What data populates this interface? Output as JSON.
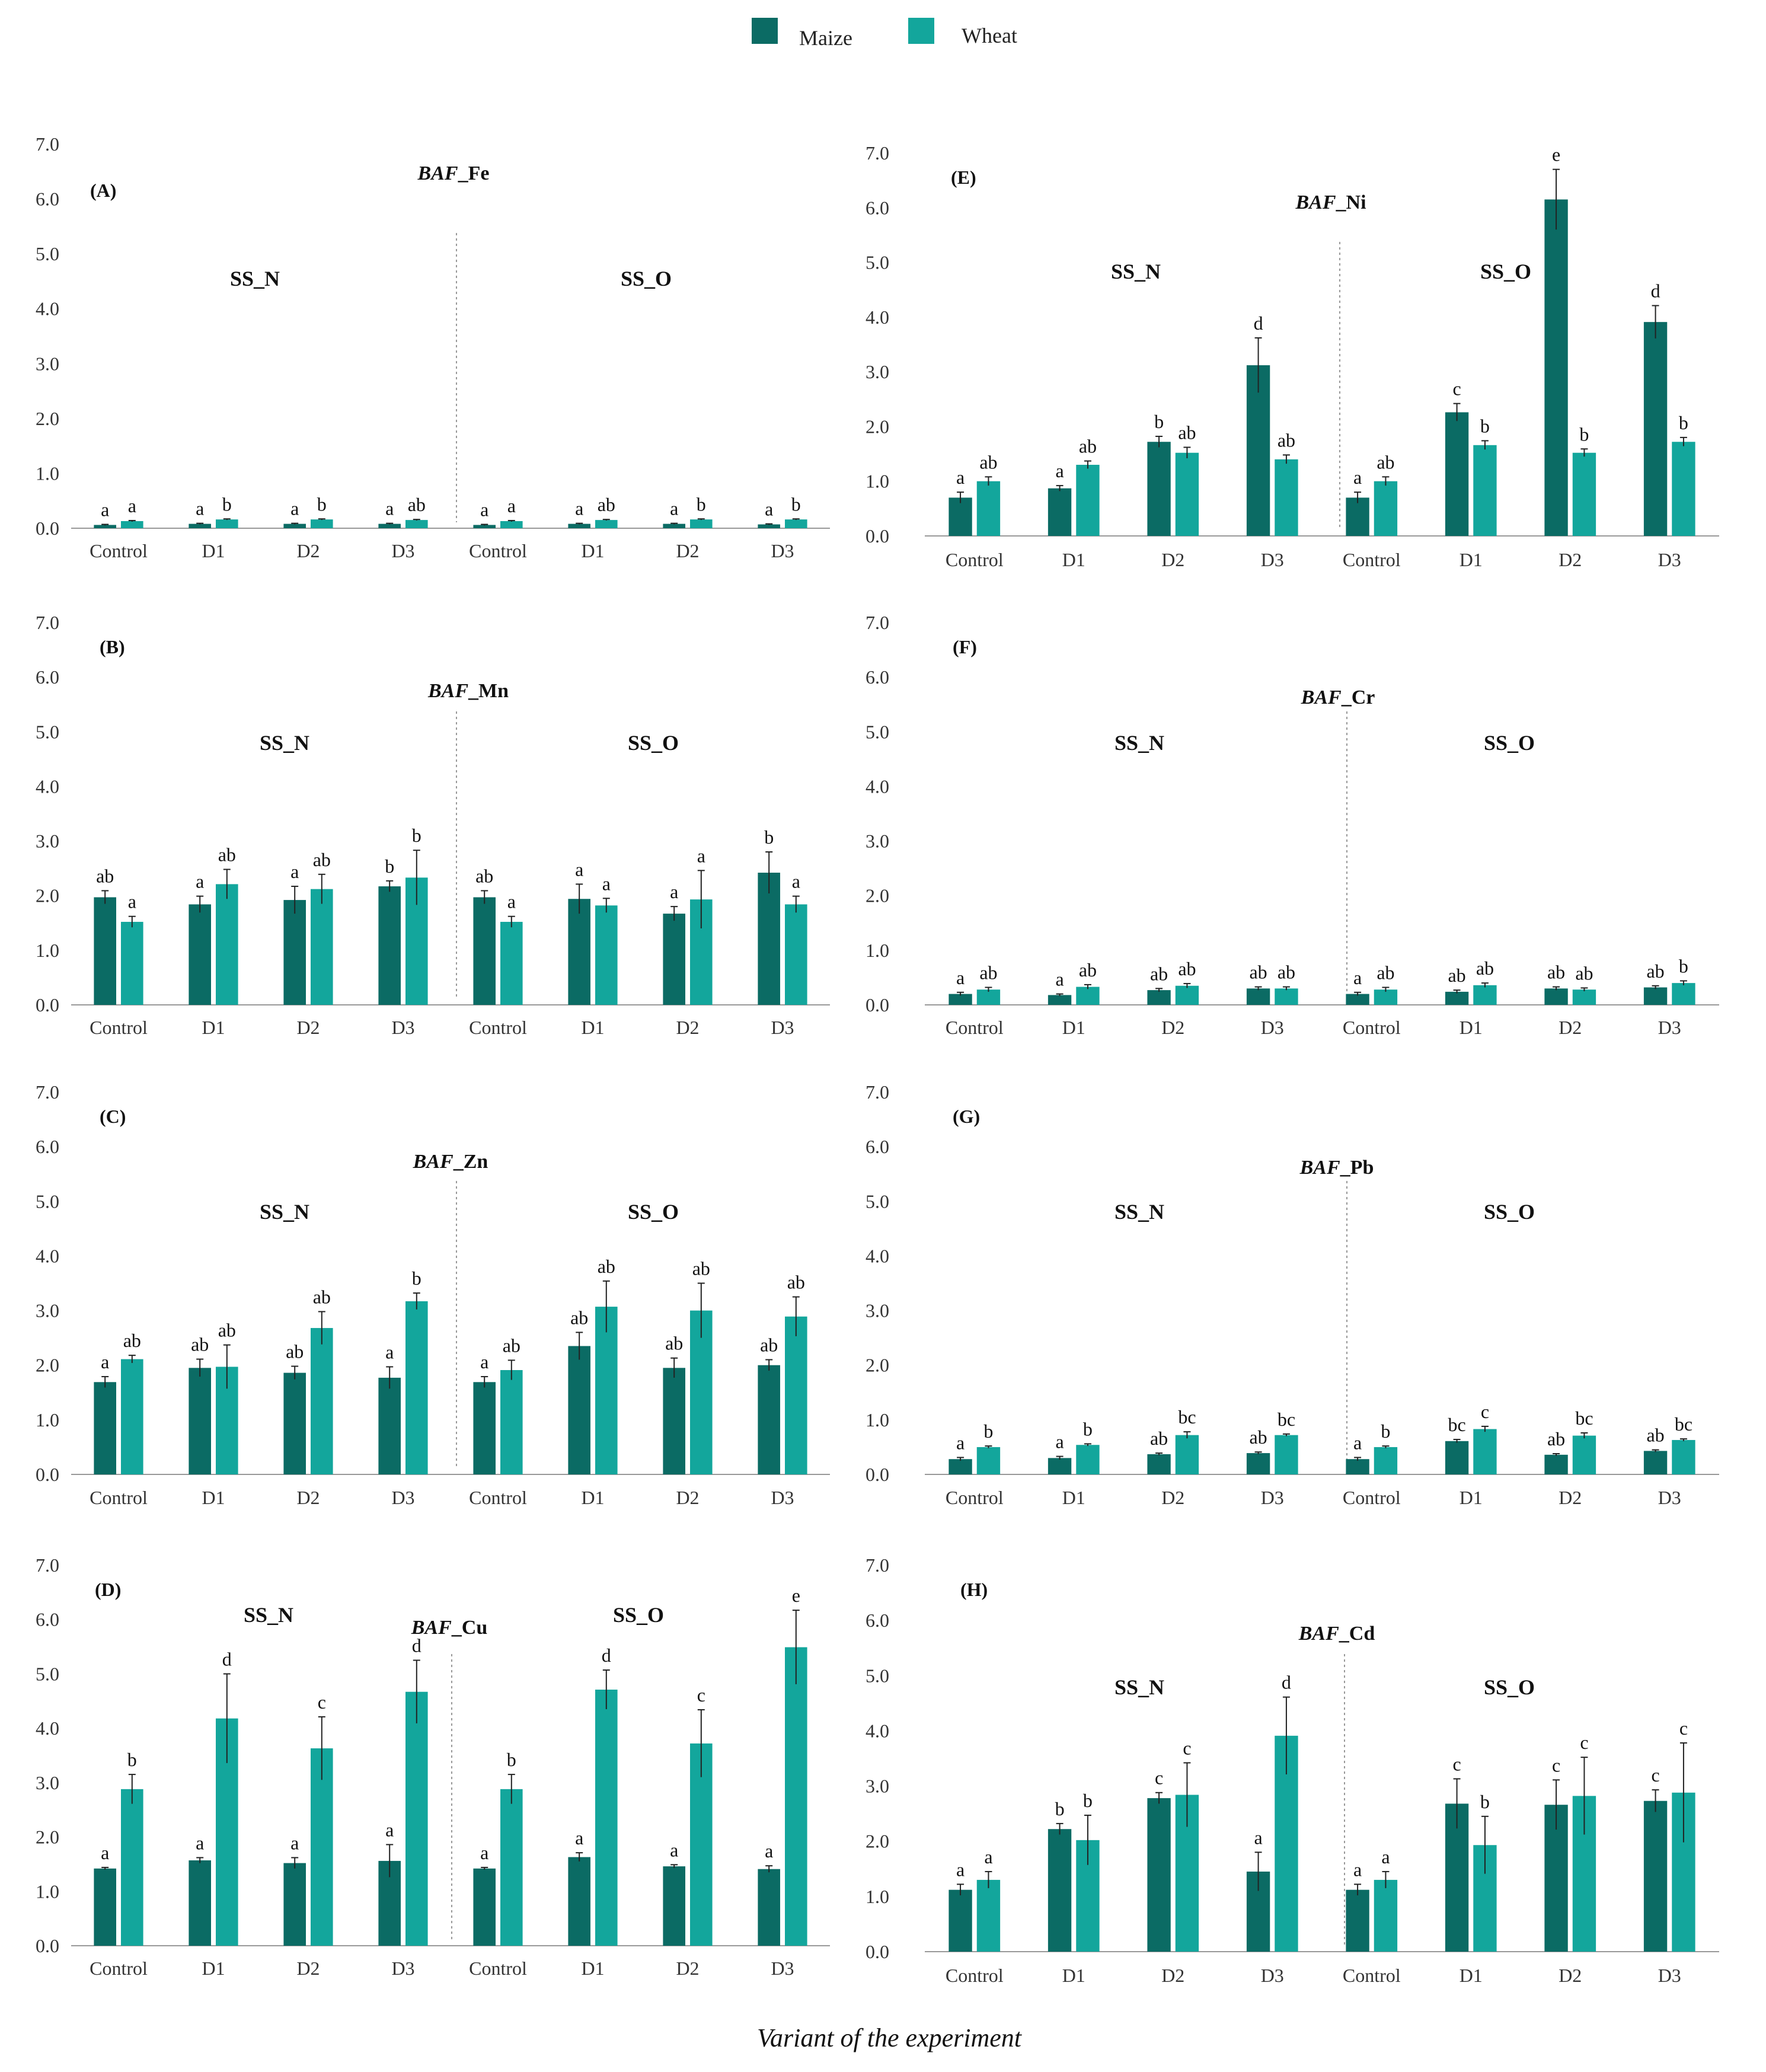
{
  "colors": {
    "maize": "#0b6b64",
    "wheat": "#13a69c",
    "divider": "#999999",
    "axis": "#999999"
  },
  "legend": [
    {
      "name": "Maize",
      "key": "maize"
    },
    {
      "name": "Wheat",
      "key": "wheat"
    }
  ],
  "xlabel": "Variant of the experiment",
  "chart_data": [
    {
      "type": "bar",
      "panel": "(A)",
      "title_prefix": "BAF",
      "title_suffix": "_Fe",
      "ylim": [
        0,
        7
      ],
      "yticks": [
        "0.0",
        "1.0",
        "2.0",
        "3.0",
        "4.0",
        "5.0",
        "6.0",
        "7.0"
      ],
      "groups": [
        "SS_N",
        "SS_O"
      ],
      "categories": [
        "Control",
        "D1",
        "D2",
        "D3",
        "Control",
        "D1",
        "D2",
        "D3"
      ],
      "series": [
        {
          "name": "Maize",
          "values": [
            0.06,
            0.08,
            0.08,
            0.08,
            0.06,
            0.08,
            0.08,
            0.07
          ],
          "errors": [
            0.01,
            0.01,
            0.01,
            0.01,
            0.01,
            0.01,
            0.01,
            0.01
          ],
          "labels": [
            "a",
            "a",
            "a",
            "a",
            "a",
            "a",
            "a",
            "a"
          ]
        },
        {
          "name": "Wheat",
          "values": [
            0.13,
            0.16,
            0.16,
            0.15,
            0.13,
            0.15,
            0.16,
            0.16
          ],
          "errors": [
            0.01,
            0.01,
            0.01,
            0.01,
            0.01,
            0.01,
            0.01,
            0.01
          ],
          "labels": [
            "a",
            "b",
            "b",
            "ab",
            "a",
            "ab",
            "b",
            "b"
          ]
        }
      ]
    },
    {
      "type": "bar",
      "panel": "(B)",
      "title_prefix": "BAF",
      "title_suffix": "_Mn",
      "ylim": [
        0,
        7
      ],
      "yticks": [
        "0.0",
        "1.0",
        "2.0",
        "3.0",
        "4.0",
        "5.0",
        "6.0",
        "7.0"
      ],
      "groups": [
        "SS_N",
        "SS_O"
      ],
      "categories": [
        "Control",
        "D1",
        "D2",
        "D3",
        "Control",
        "D1",
        "D2",
        "D3"
      ],
      "series": [
        {
          "name": "Maize",
          "values": [
            1.97,
            1.84,
            1.92,
            2.17,
            1.97,
            1.94,
            1.67,
            2.42
          ],
          "errors": [
            0.12,
            0.15,
            0.25,
            0.1,
            0.12,
            0.27,
            0.13,
            0.38
          ],
          "labels": [
            "ab",
            "a",
            "a",
            "b",
            "ab",
            "a",
            "a",
            "b"
          ]
        },
        {
          "name": "Wheat",
          "values": [
            1.52,
            2.21,
            2.12,
            2.33,
            1.52,
            1.82,
            1.93,
            1.84
          ],
          "errors": [
            0.1,
            0.27,
            0.27,
            0.5,
            0.1,
            0.13,
            0.53,
            0.15
          ],
          "labels": [
            "a",
            "ab",
            "ab",
            "b",
            "a",
            "a",
            "a",
            "a"
          ]
        }
      ]
    },
    {
      "type": "bar",
      "panel": "(C)",
      "title_prefix": "BAF",
      "title_suffix": "_Zn",
      "ylim": [
        0,
        7
      ],
      "yticks": [
        "0.0",
        "1.0",
        "2.0",
        "3.0",
        "4.0",
        "5.0",
        "6.0",
        "7.0"
      ],
      "groups": [
        "SS_N",
        "SS_O"
      ],
      "categories": [
        "Control",
        "D1",
        "D2",
        "D3",
        "Control",
        "D1",
        "D2",
        "D3"
      ],
      "series": [
        {
          "name": "Maize",
          "values": [
            1.69,
            1.95,
            1.86,
            1.77,
            1.69,
            2.35,
            1.95,
            2.0
          ],
          "errors": [
            0.1,
            0.16,
            0.12,
            0.2,
            0.1,
            0.25,
            0.18,
            0.1
          ],
          "labels": [
            "a",
            "ab",
            "ab",
            "a",
            "a",
            "ab",
            "ab",
            "ab"
          ]
        },
        {
          "name": "Wheat",
          "values": [
            2.11,
            1.97,
            2.68,
            3.17,
            1.91,
            3.07,
            3.0,
            2.89
          ],
          "errors": [
            0.07,
            0.4,
            0.3,
            0.15,
            0.18,
            0.47,
            0.5,
            0.36
          ],
          "labels": [
            "ab",
            "ab",
            "ab",
            "b",
            "ab",
            "ab",
            "ab",
            "ab"
          ]
        }
      ]
    },
    {
      "type": "bar",
      "panel": "(D)",
      "title_prefix": "BAF",
      "title_suffix": "_Cu",
      "ylim": [
        0,
        7
      ],
      "yticks": [
        "0.0",
        "1.0",
        "2.0",
        "3.0",
        "4.0",
        "5.0",
        "6.0",
        "7.0"
      ],
      "groups": [
        "SS_N",
        "SS_O"
      ],
      "categories": [
        "Control",
        "D1",
        "D2",
        "D3",
        "Control",
        "D1",
        "D2",
        "D3"
      ],
      "series": [
        {
          "name": "Maize",
          "values": [
            1.42,
            1.57,
            1.52,
            1.56,
            1.42,
            1.63,
            1.46,
            1.41
          ],
          "errors": [
            0.02,
            0.05,
            0.1,
            0.3,
            0.02,
            0.08,
            0.03,
            0.06
          ],
          "labels": [
            "a",
            "a",
            "a",
            "a",
            "a",
            "a",
            "a",
            "a"
          ]
        },
        {
          "name": "Wheat",
          "values": [
            2.88,
            4.18,
            3.63,
            4.67,
            2.88,
            4.71,
            3.72,
            5.49
          ],
          "errors": [
            0.27,
            0.82,
            0.58,
            0.58,
            0.27,
            0.36,
            0.62,
            0.68
          ],
          "labels": [
            "b",
            "d",
            "c",
            "d",
            "b",
            "d",
            "c",
            "e"
          ]
        }
      ]
    },
    {
      "type": "bar",
      "panel": "(E)",
      "title_prefix": "BAF",
      "title_suffix": "_Ni",
      "ylim": [
        0,
        7
      ],
      "yticks": [
        "0.0",
        "1.0",
        "2.0",
        "3.0",
        "4.0",
        "5.0",
        "6.0",
        "7.0"
      ],
      "groups": [
        "SS_N",
        "SS_O"
      ],
      "categories": [
        "Control",
        "D1",
        "D2",
        "D3",
        "Control",
        "D1",
        "D2",
        "D3"
      ],
      "series": [
        {
          "name": "Maize",
          "values": [
            0.7,
            0.87,
            1.72,
            3.12,
            0.7,
            2.26,
            6.15,
            3.91
          ],
          "errors": [
            0.1,
            0.05,
            0.1,
            0.5,
            0.1,
            0.16,
            0.55,
            0.3
          ],
          "labels": [
            "a",
            "a",
            "b",
            "d",
            "a",
            "c",
            "e",
            "d"
          ]
        },
        {
          "name": "Wheat",
          "values": [
            1.0,
            1.3,
            1.52,
            1.4,
            1.0,
            1.66,
            1.52,
            1.72
          ],
          "errors": [
            0.08,
            0.07,
            0.1,
            0.08,
            0.08,
            0.08,
            0.07,
            0.08
          ],
          "labels": [
            "ab",
            "ab",
            "ab",
            "ab",
            "ab",
            "b",
            "b",
            "b"
          ]
        }
      ]
    },
    {
      "type": "bar",
      "panel": "(F)",
      "title_prefix": "BAF",
      "title_suffix": "_Cr",
      "ylim": [
        0,
        7
      ],
      "yticks": [
        "0.0",
        "1.0",
        "2.0",
        "3.0",
        "4.0",
        "5.0",
        "6.0",
        "7.0"
      ],
      "groups": [
        "SS_N",
        "SS_O"
      ],
      "categories": [
        "Control",
        "D1",
        "D2",
        "D3",
        "Control",
        "D1",
        "D2",
        "D3"
      ],
      "series": [
        {
          "name": "Maize",
          "values": [
            0.2,
            0.18,
            0.27,
            0.3,
            0.2,
            0.24,
            0.3,
            0.32
          ],
          "errors": [
            0.03,
            0.02,
            0.03,
            0.03,
            0.03,
            0.03,
            0.03,
            0.03
          ],
          "labels": [
            "a",
            "a",
            "ab",
            "ab",
            "a",
            "ab",
            "ab",
            "ab"
          ]
        },
        {
          "name": "Wheat",
          "values": [
            0.28,
            0.33,
            0.35,
            0.3,
            0.28,
            0.36,
            0.28,
            0.4
          ],
          "errors": [
            0.04,
            0.04,
            0.04,
            0.03,
            0.04,
            0.04,
            0.03,
            0.04
          ],
          "labels": [
            "ab",
            "ab",
            "ab",
            "ab",
            "ab",
            "ab",
            "ab",
            "b"
          ]
        }
      ]
    },
    {
      "type": "bar",
      "panel": "(G)",
      "title_prefix": "BAF",
      "title_suffix": "_Pb",
      "ylim": [
        0,
        7
      ],
      "yticks": [
        "0.0",
        "1.0",
        "2.0",
        "3.0",
        "4.0",
        "5.0",
        "6.0",
        "7.0"
      ],
      "groups": [
        "SS_N",
        "SS_O"
      ],
      "categories": [
        "Control",
        "D1",
        "D2",
        "D3",
        "Control",
        "D1",
        "D2",
        "D3"
      ],
      "series": [
        {
          "name": "Maize",
          "values": [
            0.28,
            0.3,
            0.37,
            0.39,
            0.28,
            0.61,
            0.36,
            0.43
          ],
          "errors": [
            0.03,
            0.03,
            0.02,
            0.02,
            0.03,
            0.03,
            0.02,
            0.02
          ],
          "labels": [
            "a",
            "a",
            "ab",
            "ab",
            "a",
            "bc",
            "ab",
            "ab"
          ]
        },
        {
          "name": "Wheat",
          "values": [
            0.5,
            0.54,
            0.72,
            0.72,
            0.5,
            0.83,
            0.71,
            0.63
          ],
          "errors": [
            0.02,
            0.02,
            0.06,
            0.02,
            0.02,
            0.05,
            0.05,
            0.02
          ],
          "labels": [
            "b",
            "b",
            "bc",
            "bc",
            "b",
            "c",
            "bc",
            "bc"
          ]
        }
      ]
    },
    {
      "type": "bar",
      "panel": "(H)",
      "title_prefix": "BAF",
      "title_suffix": "_Cd",
      "ylim": [
        0,
        7
      ],
      "yticks": [
        "0.0",
        "1.0",
        "2.0",
        "3.0",
        "4.0",
        "5.0",
        "6.0",
        "7.0"
      ],
      "groups": [
        "SS_N",
        "SS_O"
      ],
      "categories": [
        "Control",
        "D1",
        "D2",
        "D3",
        "Control",
        "D1",
        "D2",
        "D3"
      ],
      "series": [
        {
          "name": "Maize",
          "values": [
            1.12,
            2.22,
            2.78,
            1.45,
            1.12,
            2.68,
            2.66,
            2.73
          ],
          "errors": [
            0.1,
            0.1,
            0.1,
            0.35,
            0.1,
            0.45,
            0.45,
            0.2
          ],
          "labels": [
            "a",
            "b",
            "c",
            "a",
            "a",
            "c",
            "c",
            "c"
          ]
        },
        {
          "name": "Wheat",
          "values": [
            1.3,
            2.02,
            2.84,
            3.91,
            1.3,
            1.93,
            2.82,
            2.88
          ],
          "errors": [
            0.15,
            0.45,
            0.58,
            0.7,
            0.15,
            0.52,
            0.7,
            0.9
          ],
          "labels": [
            "a",
            "b",
            "c",
            "d",
            "a",
            "b",
            "c",
            "c"
          ]
        }
      ]
    }
  ]
}
